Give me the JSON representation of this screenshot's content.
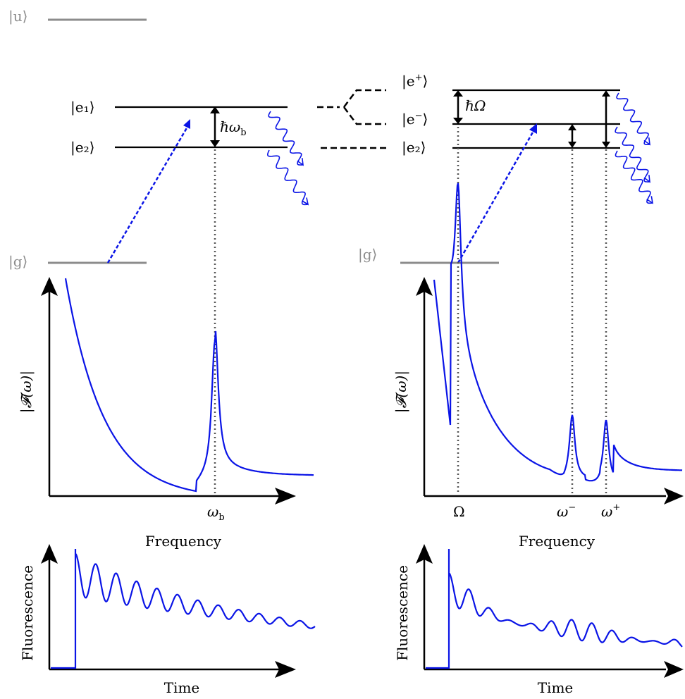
{
  "colors": {
    "curve": "#0a14e6",
    "level_gray": "#8c8c8c",
    "level_black": "#000000",
    "dotted": "#555555"
  },
  "levels": {
    "u": "|u⟩",
    "g_left": "|g⟩",
    "g_right": "|g⟩",
    "e1": "|e₁⟩",
    "e2_left": "|e₂⟩",
    "e_plus_base": "|e",
    "e_plus_sup": "+",
    "e_minus_base": "|e",
    "e_minus_sup": "−",
    "e2_right": "|e₂⟩",
    "ket_close": "⟩"
  },
  "gaps": {
    "left": "ℏω",
    "left_sub": "b",
    "right": "ℏΩ"
  },
  "left_panel": {
    "ylabel": "|𝓕(ω)|",
    "xlabel": "Frequency",
    "tick_base": "ω",
    "tick_sub": "b",
    "time_ylabel": "Fluorescence",
    "time_xlabel": "Time"
  },
  "right_panel": {
    "ylabel": "|𝓕(ω)|",
    "xlabel": "Frequency",
    "tick_omega": "Ω",
    "tick_minus_base": "ω",
    "tick_minus_sup": "−",
    "tick_plus_base": "ω",
    "tick_plus_sup": "+",
    "time_ylabel": "Fluorescence",
    "time_xlabel": "Time"
  }
}
